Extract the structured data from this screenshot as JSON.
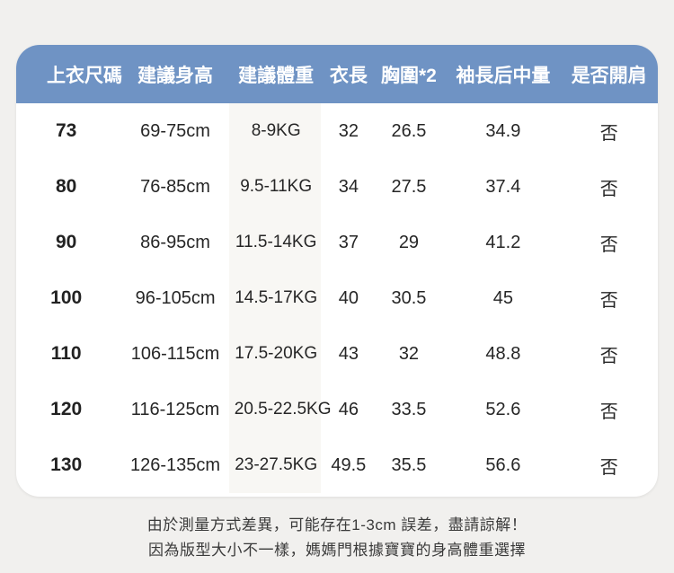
{
  "colors": {
    "header_bg": "#6f93c4",
    "page_bg": "#f1f0ee",
    "card_bg": "#ffffff",
    "weight_band_bg": "#f8f7f4",
    "header_text": "#ffffff",
    "body_text": "#262626"
  },
  "table": {
    "headers": [
      "上衣尺碼",
      "建議身高",
      "建議體重",
      "衣長",
      "胸圍*2",
      "袖長后中量",
      "是否開肩"
    ],
    "rows": [
      [
        "73",
        "69-75cm",
        "8-9KG",
        "32",
        "26.5",
        "34.9",
        "否"
      ],
      [
        "80",
        "76-85cm",
        "9.5-11KG",
        "34",
        "27.5",
        "37.4",
        "否"
      ],
      [
        "90",
        "86-95cm",
        "11.5-14KG",
        "37",
        "29",
        "41.2",
        "否"
      ],
      [
        "100",
        "96-105cm",
        "14.5-17KG",
        "40",
        "30.5",
        "45",
        "否"
      ],
      [
        "110",
        "106-115cm",
        "17.5-20KG",
        "43",
        "32",
        "48.8",
        "否"
      ],
      [
        "120",
        "116-125cm",
        "20.5-22.5KG",
        "46",
        "33.5",
        "52.6",
        "否"
      ],
      [
        "130",
        "126-135cm",
        "23-27.5KG",
        "49.5",
        "35.5",
        "56.6",
        "否"
      ]
    ]
  },
  "notes": {
    "line1": "由於測量方式差異，可能存在1-3cm 誤差，盡請諒解！",
    "line2": "因為版型大小不一樣，媽媽門根據寶寶的身高體重選擇"
  },
  "chart_data": {
    "type": "table",
    "title": "上衣尺碼表",
    "columns": [
      "上衣尺碼",
      "建議身高",
      "建議體重",
      "衣長",
      "胸圍*2",
      "袖長后中量",
      "是否開肩"
    ],
    "rows": [
      [
        "73",
        "69-75cm",
        "8-9KG",
        "32",
        "26.5",
        "34.9",
        "否"
      ],
      [
        "80",
        "76-85cm",
        "9.5-11KG",
        "34",
        "27.5",
        "37.4",
        "否"
      ],
      [
        "90",
        "86-95cm",
        "11.5-14KG",
        "37",
        "29",
        "41.2",
        "否"
      ],
      [
        "100",
        "96-105cm",
        "14.5-17KG",
        "40",
        "30.5",
        "45",
        "否"
      ],
      [
        "110",
        "106-115cm",
        "17.5-20KG",
        "43",
        "32",
        "48.8",
        "否"
      ],
      [
        "120",
        "116-125cm",
        "20.5-22.5KG",
        "46",
        "33.5",
        "52.6",
        "否"
      ],
      [
        "130",
        "126-135cm",
        "23-27.5KG",
        "49.5",
        "35.5",
        "56.6",
        "否"
      ]
    ]
  }
}
